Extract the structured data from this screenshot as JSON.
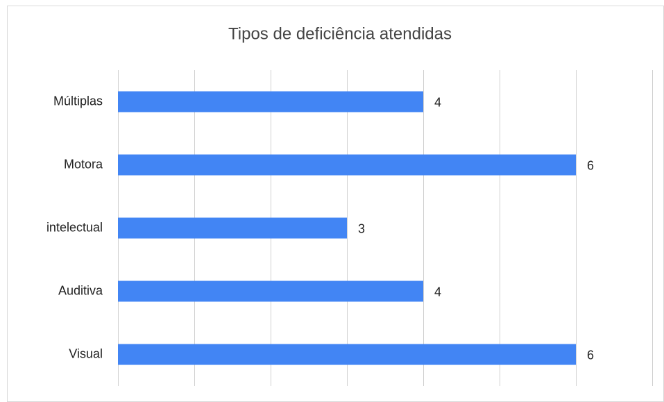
{
  "chart_data": {
    "type": "bar",
    "orientation": "horizontal",
    "title": "Tipos de deficiência atendidas",
    "categories": [
      "Múltiplas",
      "Motora",
      "intelectual",
      "Auditiva",
      "Visual"
    ],
    "values": [
      4,
      6,
      3,
      4,
      6
    ],
    "color": "#4285f4",
    "xlim": [
      0,
      7
    ],
    "xticks": [
      0,
      1,
      2,
      3,
      4,
      5,
      6,
      7
    ],
    "grid": true
  }
}
